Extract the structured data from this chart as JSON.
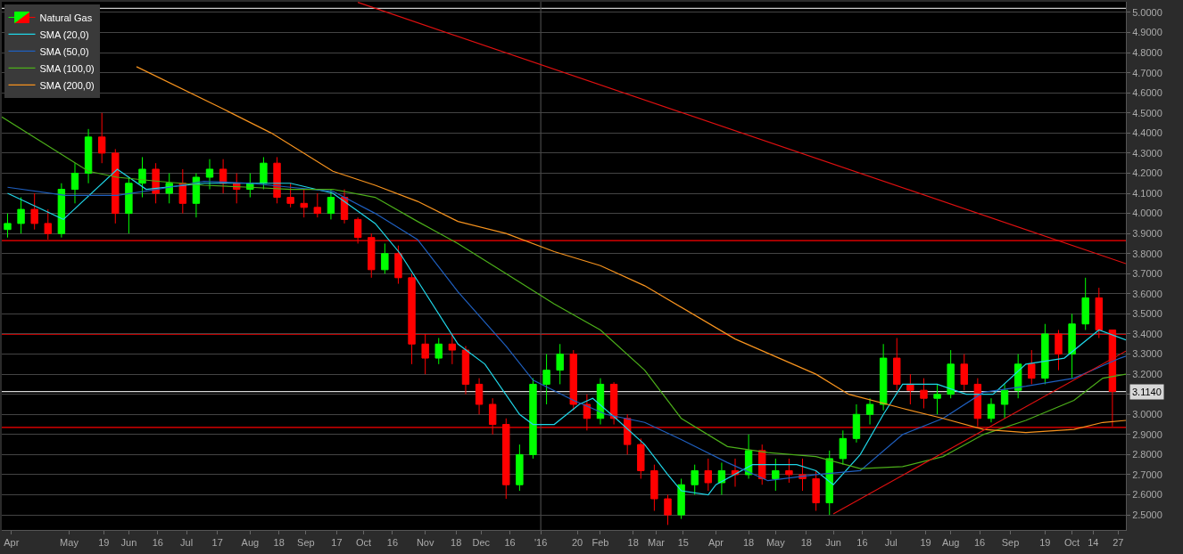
{
  "chart_data": {
    "type": "candlestick",
    "grid": "y",
    "legend": "top left",
    "xlim": [
      "2015-03-27",
      "2016-10-31"
    ],
    "xticks": [
      {
        "value": "2015-04-01",
        "label": "Apr"
      },
      {
        "value": "2015-05-01",
        "label": "May"
      },
      {
        "value": "2015-05-19",
        "label": "19"
      },
      {
        "value": "2015-06-01",
        "label": "Jun"
      },
      {
        "value": "2015-06-16",
        "label": "16"
      },
      {
        "value": "2015-07-01",
        "label": "Jul"
      },
      {
        "value": "2015-07-17",
        "label": "17"
      },
      {
        "value": "2015-08-03",
        "label": "Aug"
      },
      {
        "value": "2015-08-18",
        "label": "18"
      },
      {
        "value": "2015-09-01",
        "label": "Sep"
      },
      {
        "value": "2015-09-17",
        "label": "17"
      },
      {
        "value": "2015-10-01",
        "label": "Oct"
      },
      {
        "value": "2015-10-16",
        "label": "16"
      },
      {
        "value": "2015-11-02",
        "label": "Nov"
      },
      {
        "value": "2015-11-18",
        "label": "18"
      },
      {
        "value": "2015-12-01",
        "label": "Dec"
      },
      {
        "value": "2015-12-16",
        "label": "16"
      },
      {
        "value": "2016-01-01",
        "label": "'16"
      },
      {
        "value": "2016-01-20",
        "label": "20"
      },
      {
        "value": "2016-02-01",
        "label": "Feb"
      },
      {
        "value": "2016-02-18",
        "label": "18"
      },
      {
        "value": "2016-03-01",
        "label": "Mar"
      },
      {
        "value": "2016-03-15",
        "label": "15"
      },
      {
        "value": "2016-04-01",
        "label": "Apr"
      },
      {
        "value": "2016-04-18",
        "label": "18"
      },
      {
        "value": "2016-05-02",
        "label": "May"
      },
      {
        "value": "2016-05-18",
        "label": "18"
      },
      {
        "value": "2016-06-01",
        "label": "Jun"
      },
      {
        "value": "2016-06-16",
        "label": "16"
      },
      {
        "value": "2016-07-01",
        "label": "Jul"
      },
      {
        "value": "2016-07-19",
        "label": "19"
      },
      {
        "value": "2016-08-01",
        "label": "Aug"
      },
      {
        "value": "2016-08-16",
        "label": "16"
      },
      {
        "value": "2016-09-01",
        "label": "Sep"
      },
      {
        "value": "2016-09-19",
        "label": "19"
      },
      {
        "value": "2016-10-03",
        "label": "Oct"
      },
      {
        "value": "2016-10-14",
        "label": "14"
      },
      {
        "value": "2016-10-27",
        "label": "27"
      }
    ],
    "ylim": [
      2.425,
      5.053
    ],
    "yticks": [
      {
        "value": 2.5,
        "label": "2.5000"
      },
      {
        "value": 2.6,
        "label": "2.6000"
      },
      {
        "value": 2.7,
        "label": "2.7000"
      },
      {
        "value": 2.8,
        "label": "2.8000"
      },
      {
        "value": 2.9,
        "label": "2.9000"
      },
      {
        "value": 3.0,
        "label": "3.0000"
      },
      {
        "value": 3.1,
        "label": null
      },
      {
        "value": 3.2,
        "label": "3.2000"
      },
      {
        "value": 3.3,
        "label": "3.3000"
      },
      {
        "value": 3.4,
        "label": "3.4000"
      },
      {
        "value": 3.5,
        "label": "3.5000"
      },
      {
        "value": 3.6,
        "label": "3.6000"
      },
      {
        "value": 3.7,
        "label": "3.7000"
      },
      {
        "value": 3.8,
        "label": "3.8000"
      },
      {
        "value": 3.9,
        "label": "3.9000"
      },
      {
        "value": 4.0,
        "label": "4.0000"
      },
      {
        "value": 4.1,
        "label": "4.1000"
      },
      {
        "value": 4.2,
        "label": "4.2000"
      },
      {
        "value": 4.3,
        "label": "4.3000"
      },
      {
        "value": 4.4,
        "label": "4.4000"
      },
      {
        "value": 4.5,
        "label": "4.5000"
      },
      {
        "value": 4.6,
        "label": "4.6000"
      },
      {
        "value": 4.7,
        "label": "4.7000"
      },
      {
        "value": 4.8,
        "label": "4.8000"
      },
      {
        "value": 4.9,
        "label": "4.9000"
      },
      {
        "value": 5.0,
        "label": "5.0000"
      }
    ],
    "series": [
      {
        "name": "Natural Gas",
        "x": [
          "2015-03-30",
          "2015-04-06",
          "2015-04-13",
          "2015-04-20",
          "2015-04-27",
          "2015-05-04",
          "2015-05-11",
          "2015-05-18",
          "2015-05-25",
          "2015-06-01",
          "2015-06-08",
          "2015-06-15",
          "2015-06-22",
          "2015-06-29",
          "2015-07-06",
          "2015-07-13",
          "2015-07-20",
          "2015-07-27",
          "2015-08-03",
          "2015-08-10",
          "2015-08-17",
          "2015-08-24",
          "2015-08-31",
          "2015-09-07",
          "2015-09-14",
          "2015-09-21",
          "2015-09-28",
          "2015-10-05",
          "2015-10-12",
          "2015-10-19",
          "2015-10-26",
          "2015-11-02",
          "2015-11-09",
          "2015-11-16",
          "2015-11-23",
          "2015-11-30",
          "2015-12-07",
          "2015-12-14",
          "2015-12-21",
          "2015-12-28",
          "2016-01-04",
          "2016-01-11",
          "2016-01-18",
          "2016-01-25",
          "2016-02-01",
          "2016-02-08",
          "2016-02-15",
          "2016-02-22",
          "2016-02-29",
          "2016-03-07",
          "2016-03-14",
          "2016-03-21",
          "2016-03-28",
          "2016-04-04",
          "2016-04-11",
          "2016-04-18",
          "2016-04-25",
          "2016-05-02",
          "2016-05-09",
          "2016-05-16",
          "2016-05-23",
          "2016-05-30",
          "2016-06-06",
          "2016-06-13",
          "2016-06-20",
          "2016-06-27",
          "2016-07-04",
          "2016-07-11",
          "2016-07-18",
          "2016-07-25",
          "2016-08-01",
          "2016-08-08",
          "2016-08-15",
          "2016-08-22",
          "2016-08-29",
          "2016-09-05",
          "2016-09-12",
          "2016-09-19",
          "2016-09-26",
          "2016-10-03",
          "2016-10-10",
          "2016-10-17",
          "2016-10-24"
        ],
        "ohlc": [
          [
            3.92,
            4.0,
            3.88,
            3.95
          ],
          [
            3.95,
            4.08,
            3.9,
            4.02
          ],
          [
            4.02,
            4.1,
            3.92,
            3.95
          ],
          [
            3.95,
            4.02,
            3.87,
            3.9
          ],
          [
            3.9,
            4.15,
            3.88,
            4.12
          ],
          [
            4.12,
            4.25,
            4.05,
            4.2
          ],
          [
            4.2,
            4.42,
            4.15,
            4.38
          ],
          [
            4.38,
            4.5,
            4.25,
            4.3
          ],
          [
            4.3,
            4.32,
            3.95,
            4.0
          ],
          [
            4.0,
            4.18,
            3.9,
            4.15
          ],
          [
            4.15,
            4.28,
            4.08,
            4.22
          ],
          [
            4.22,
            4.25,
            4.05,
            4.1
          ],
          [
            4.1,
            4.2,
            4.05,
            4.15
          ],
          [
            4.15,
            4.22,
            4.0,
            4.05
          ],
          [
            4.05,
            4.2,
            3.98,
            4.18
          ],
          [
            4.18,
            4.27,
            4.12,
            4.22
          ],
          [
            4.22,
            4.27,
            4.1,
            4.15
          ],
          [
            4.15,
            4.2,
            4.05,
            4.12
          ],
          [
            4.12,
            4.2,
            4.08,
            4.15
          ],
          [
            4.15,
            4.28,
            4.12,
            4.25
          ],
          [
            4.25,
            4.28,
            4.05,
            4.08
          ],
          [
            4.08,
            4.15,
            4.03,
            4.05
          ],
          [
            4.05,
            4.12,
            3.98,
            4.03
          ],
          [
            4.03,
            4.1,
            3.98,
            4.0
          ],
          [
            4.0,
            4.12,
            3.97,
            4.08
          ],
          [
            4.08,
            4.12,
            3.95,
            3.97
          ],
          [
            3.97,
            3.98,
            3.85,
            3.88
          ],
          [
            3.88,
            3.9,
            3.68,
            3.72
          ],
          [
            3.72,
            3.85,
            3.7,
            3.8
          ],
          [
            3.8,
            3.84,
            3.65,
            3.68
          ],
          [
            3.68,
            3.7,
            3.25,
            3.35
          ],
          [
            3.35,
            3.4,
            3.2,
            3.28
          ],
          [
            3.28,
            3.38,
            3.25,
            3.35
          ],
          [
            3.35,
            3.4,
            3.25,
            3.32
          ],
          [
            3.32,
            3.34,
            3.1,
            3.15
          ],
          [
            3.15,
            3.18,
            3.0,
            3.05
          ],
          [
            3.05,
            3.08,
            2.9,
            2.95
          ],
          [
            2.95,
            2.98,
            2.58,
            2.65
          ],
          [
            2.65,
            2.85,
            2.62,
            2.8
          ],
          [
            2.8,
            3.18,
            2.78,
            3.15
          ],
          [
            3.15,
            3.3,
            3.05,
            3.22
          ],
          [
            3.22,
            3.35,
            3.15,
            3.3
          ],
          [
            3.3,
            3.32,
            3.02,
            3.05
          ],
          [
            3.05,
            3.1,
            2.92,
            2.98
          ],
          [
            2.98,
            3.18,
            2.95,
            3.15
          ],
          [
            3.15,
            3.16,
            2.95,
            2.98
          ],
          [
            2.98,
            3.0,
            2.8,
            2.85
          ],
          [
            2.85,
            2.88,
            2.68,
            2.72
          ],
          [
            2.72,
            2.75,
            2.52,
            2.58
          ],
          [
            2.58,
            2.6,
            2.45,
            2.5
          ],
          [
            2.5,
            2.68,
            2.48,
            2.65
          ],
          [
            2.65,
            2.75,
            2.6,
            2.72
          ],
          [
            2.72,
            2.78,
            2.62,
            2.66
          ],
          [
            2.66,
            2.76,
            2.6,
            2.72
          ],
          [
            2.72,
            2.78,
            2.64,
            2.7
          ],
          [
            2.7,
            2.9,
            2.68,
            2.82
          ],
          [
            2.82,
            2.85,
            2.65,
            2.68
          ],
          [
            2.68,
            2.78,
            2.62,
            2.72
          ],
          [
            2.72,
            2.78,
            2.66,
            2.7
          ],
          [
            2.7,
            2.78,
            2.62,
            2.68
          ],
          [
            2.68,
            2.72,
            2.52,
            2.56
          ],
          [
            2.56,
            2.82,
            2.5,
            2.78
          ],
          [
            2.78,
            2.92,
            2.75,
            2.88
          ],
          [
            2.88,
            3.05,
            2.86,
            3.0
          ],
          [
            3.0,
            3.08,
            2.95,
            3.05
          ],
          [
            3.05,
            3.35,
            3.02,
            3.28
          ],
          [
            3.28,
            3.38,
            3.12,
            3.15
          ],
          [
            3.15,
            3.2,
            3.05,
            3.12
          ],
          [
            3.12,
            3.18,
            3.03,
            3.08
          ],
          [
            3.08,
            3.15,
            3.0,
            3.1
          ],
          [
            3.1,
            3.32,
            3.08,
            3.25
          ],
          [
            3.25,
            3.3,
            3.12,
            3.15
          ],
          [
            3.15,
            3.18,
            2.94,
            2.98
          ],
          [
            2.98,
            3.08,
            2.96,
            3.05
          ],
          [
            3.05,
            3.15,
            2.98,
            3.12
          ],
          [
            3.12,
            3.3,
            3.08,
            3.25
          ],
          [
            3.25,
            3.32,
            3.15,
            3.18
          ],
          [
            3.18,
            3.45,
            3.15,
            3.4
          ],
          [
            3.4,
            3.42,
            3.22,
            3.3
          ],
          [
            3.3,
            3.5,
            3.18,
            3.45
          ],
          [
            3.45,
            3.68,
            3.42,
            3.58
          ],
          [
            3.58,
            3.63,
            3.38,
            3.42
          ],
          [
            3.42,
            3.42,
            2.94,
            3.114
          ]
        ],
        "colors": [
          "#00ff00",
          "#00ff00",
          "#ff0000",
          "#ff0000",
          "#00ff00",
          "#00ff00",
          "#00ff00",
          "#ff0000",
          "#ff0000",
          "#00ff00",
          "#00ff00",
          "#ff0000",
          "#00ff00",
          "#ff0000",
          "#00ff00",
          "#00ff00",
          "#ff0000",
          "#ff0000",
          "#00ff00",
          "#00ff00",
          "#ff0000",
          "#ff0000",
          "#ff0000",
          "#ff0000",
          "#00ff00",
          "#ff0000",
          "#ff0000",
          "#ff0000",
          "#00ff00",
          "#ff0000",
          "#ff0000",
          "#ff0000",
          "#00ff00",
          "#ff0000",
          "#ff0000",
          "#ff0000",
          "#ff0000",
          "#ff0000",
          "#00ff00",
          "#00ff00",
          "#00ff00",
          "#00ff00",
          "#ff0000",
          "#ff0000",
          "#00ff00",
          "#ff0000",
          "#ff0000",
          "#ff0000",
          "#ff0000",
          "#ff0000",
          "#00ff00",
          "#00ff00",
          "#ff0000",
          "#00ff00",
          "#ff0000",
          "#00ff00",
          "#ff0000",
          "#00ff00",
          "#ff0000",
          "#ff0000",
          "#ff0000",
          "#00ff00",
          "#00ff00",
          "#00ff00",
          "#00ff00",
          "#00ff00",
          "#ff0000",
          "#ff0000",
          "#ff0000",
          "#00ff00",
          "#00ff00",
          "#ff0000",
          "#ff0000",
          "#00ff00",
          "#00ff00",
          "#00ff00",
          "#ff0000",
          "#00ff00",
          "#ff0000",
          "#00ff00",
          "#00ff00",
          "#ff0000",
          "#ff0000"
        ]
      },
      {
        "name": "SMA (20,0)",
        "type": "line",
        "color": "#1fd6e8",
        "x": [
          "2015-03-30",
          "2015-04-28",
          "2015-05-26",
          "2015-06-10",
          "2015-07-10",
          "2015-08-13",
          "2015-08-24",
          "2015-09-15",
          "2015-10-07",
          "2015-10-20",
          "2015-11-19",
          "2015-12-03",
          "2015-12-21",
          "2015-12-28",
          "2016-01-08",
          "2016-01-21",
          "2016-01-28",
          "2016-02-09",
          "2016-02-24",
          "2016-03-07",
          "2016-03-14",
          "2016-03-28",
          "2016-04-01",
          "2016-04-20",
          "2016-05-13",
          "2016-05-23",
          "2016-06-01",
          "2016-06-15",
          "2016-06-27",
          "2016-07-07",
          "2016-07-25",
          "2016-08-09",
          "2016-08-23",
          "2016-09-09",
          "2016-09-29",
          "2016-10-17",
          "2016-10-31"
        ],
        "values": [
          4.1,
          3.97,
          4.22,
          4.12,
          4.15,
          4.15,
          4.15,
          4.1,
          3.95,
          3.8,
          3.35,
          3.25,
          3.0,
          2.95,
          2.95,
          3.05,
          3.08,
          2.98,
          2.85,
          2.7,
          2.62,
          2.6,
          2.65,
          2.75,
          2.75,
          2.72,
          2.65,
          2.8,
          3.0,
          3.15,
          3.15,
          3.1,
          3.1,
          3.25,
          3.28,
          3.42,
          3.37
        ]
      },
      {
        "name": "SMA (50,0)",
        "type": "line",
        "color": "#1f5fbf",
        "x": [
          "2015-03-30",
          "2015-04-29",
          "2015-05-26",
          "2015-06-16",
          "2015-07-10",
          "2015-08-03",
          "2015-08-24",
          "2015-09-15",
          "2015-10-07",
          "2015-10-29",
          "2015-11-19",
          "2015-12-14",
          "2015-12-28",
          "2016-01-18",
          "2016-02-04",
          "2016-02-24",
          "2016-03-14",
          "2016-04-07",
          "2016-04-28",
          "2016-05-23",
          "2016-06-15",
          "2016-07-07",
          "2016-07-28",
          "2016-08-18",
          "2016-09-09",
          "2016-10-04",
          "2016-10-28",
          "2016-10-31"
        ],
        "values": [
          4.13,
          4.09,
          4.09,
          4.12,
          4.16,
          4.15,
          4.13,
          4.11,
          4.0,
          3.87,
          3.61,
          3.34,
          3.17,
          3.07,
          3.0,
          2.96,
          2.875,
          2.76,
          2.67,
          2.7,
          2.72,
          2.9,
          2.98,
          3.11,
          3.14,
          3.18,
          3.28,
          3.29
        ]
      },
      {
        "name": "SMA (100,0)",
        "type": "line",
        "color": "#4caf1a",
        "x": [
          "2015-03-27",
          "2015-05-11",
          "2015-05-26",
          "2015-06-16",
          "2015-07-10",
          "2015-08-03",
          "2015-08-24",
          "2015-09-15",
          "2015-10-07",
          "2015-10-29",
          "2015-11-19",
          "2015-12-14",
          "2016-01-08",
          "2016-02-01",
          "2016-02-24",
          "2016-03-14",
          "2016-04-07",
          "2016-04-28",
          "2016-05-23",
          "2016-06-15",
          "2016-07-07",
          "2016-07-28",
          "2016-08-18",
          "2016-09-09",
          "2016-10-04",
          "2016-10-19",
          "2016-10-31"
        ],
        "values": [
          4.48,
          4.21,
          4.18,
          4.16,
          4.14,
          4.13,
          4.12,
          4.12,
          4.08,
          3.96,
          3.85,
          3.7,
          3.55,
          3.42,
          3.22,
          2.98,
          2.84,
          2.81,
          2.79,
          2.73,
          2.74,
          2.79,
          2.9,
          2.97,
          3.07,
          3.18,
          3.2
        ]
      },
      {
        "name": "SMA (200,0)",
        "type": "line",
        "color": "#f7931e",
        "x": [
          "2015-06-05",
          "2015-07-20",
          "2015-08-14",
          "2015-09-15",
          "2015-10-07",
          "2015-10-29",
          "2015-11-19",
          "2015-12-14",
          "2016-01-08",
          "2016-02-01",
          "2016-02-24",
          "2016-04-11",
          "2016-05-23",
          "2016-06-09",
          "2016-07-07",
          "2016-07-28",
          "2016-08-18",
          "2016-09-09",
          "2016-10-04",
          "2016-10-19",
          "2016-10-31"
        ],
        "values": [
          4.73,
          4.52,
          4.4,
          4.21,
          4.14,
          4.06,
          3.96,
          3.9,
          3.81,
          3.74,
          3.64,
          3.375,
          3.2,
          3.1,
          3.03,
          2.98,
          2.925,
          2.91,
          2.925,
          2.96,
          2.97
        ]
      },
      {
        "type": "line",
        "color": "#e01010",
        "x": [
          "2015-09-28",
          "2016-10-31"
        ],
        "values": [
          5.05,
          3.75
        ]
      },
      {
        "type": "line",
        "color": "#e01010",
        "x": [
          "2016-06-01",
          "2016-10-31"
        ],
        "values": [
          2.505,
          3.315
        ]
      }
    ],
    "ref_lines": [
      {
        "axis": "y",
        "value": 5.02,
        "color": "#c8c8c8"
      },
      {
        "axis": "y",
        "value": 3.865,
        "color": "#ff0000"
      },
      {
        "axis": "y",
        "value": 3.4,
        "color": "#ff0000"
      },
      {
        "axis": "y",
        "value": 2.935,
        "color": "#ff0000"
      },
      {
        "axis": "y",
        "value": 3.114,
        "label": "3.1140",
        "color": "#d8d8d8"
      },
      {
        "axis": "x",
        "value": "2016-01-01",
        "color": "#555555"
      }
    ]
  }
}
